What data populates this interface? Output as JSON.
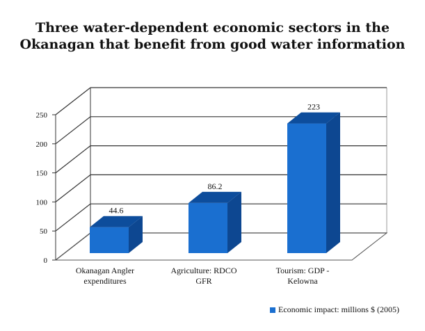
{
  "chart_data": {
    "type": "bar",
    "title_lines": [
      "Three water-dependent economic sectors in the",
      "Okanagan that benefit from good water information"
    ],
    "categories": [
      "Okanagan Angler expenditures",
      "Agriculture: RDCO GFR",
      "Tourism: GDP - Kelowna"
    ],
    "category_lines": [
      [
        "Okanagan Angler",
        "expenditures"
      ],
      [
        "Agriculture: RDCO",
        "GFR"
      ],
      [
        "Tourism: GDP -",
        "Kelowna"
      ]
    ],
    "series": [
      {
        "name": "Economic impact: millions $ (2005)",
        "values": [
          44.6,
          86.2,
          223
        ]
      }
    ],
    "data_labels": [
      "44.6",
      "86.2",
      "223"
    ],
    "yticks": [
      "0",
      "50",
      "100",
      "150",
      "200",
      "250"
    ],
    "ylim": [
      0,
      250
    ],
    "xlabel": "",
    "ylabel": "",
    "grid": true,
    "legend_position": "bottom-right",
    "colors": {
      "bar_front": "#1a6fd0",
      "bar_side": "#0d4791",
      "bar_top": "#0d4d9c",
      "grid": "#333333"
    }
  }
}
